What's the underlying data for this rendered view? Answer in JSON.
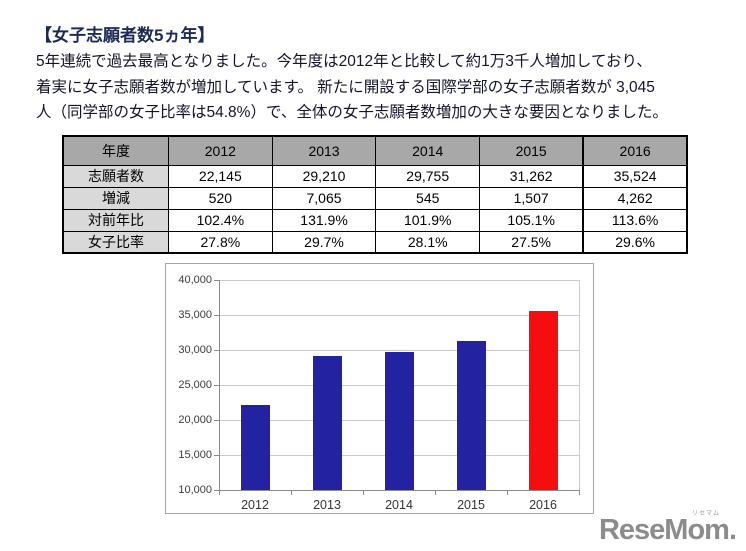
{
  "page": {
    "title": "【女子志願者数5ヵ年】",
    "paragraph_lines": [
      "5年連続で過去最高となりました。今年度は2012年と比較して約1万3千人増加しており、",
      "着実に女子志願者数が増加しています。 新たに開設する国際学部の女子志願者数が 3,045",
      "人（同学部の女子比率は54.8%）で、全体の女子志願者数増加の大きな要因となりました。"
    ]
  },
  "table": {
    "header": [
      "年度",
      "2012",
      "2013",
      "2014",
      "2015",
      "2016"
    ],
    "rows": [
      {
        "label": "志願者数",
        "values": [
          "22,145",
          "29,210",
          "29,755",
          "31,262",
          "35,524"
        ]
      },
      {
        "label": "増減",
        "values": [
          "520",
          "7,065",
          "545",
          "1,507",
          "4,262"
        ]
      },
      {
        "label": "対前年比",
        "values": [
          "102.4%",
          "131.9%",
          "101.9%",
          "105.1%",
          "113.6%"
        ]
      },
      {
        "label": "女子比率",
        "values": [
          "27.8%",
          "29.7%",
          "28.1%",
          "27.5%",
          "29.6%"
        ]
      }
    ]
  },
  "chart_data": {
    "type": "bar",
    "title": "",
    "xlabel": "",
    "ylabel": "",
    "categories": [
      "2012",
      "2013",
      "2014",
      "2015",
      "2016"
    ],
    "values": [
      22145,
      29210,
      29755,
      31262,
      35524
    ],
    "bar_colors": [
      "#2323a2",
      "#2323a2",
      "#2323a2",
      "#2323a2",
      "#f60d0d"
    ],
    "highlight_category": "2016",
    "ylim": [
      10000,
      40000
    ],
    "ytick_step": 5000,
    "ytick_labels": [
      "10,000",
      "15,000",
      "20,000",
      "25,000",
      "30,000",
      "35,000",
      "40,000"
    ],
    "grid": true,
    "legend_position": "none"
  },
  "logo": {
    "text": "ReseMom.",
    "ruby": "リセマム"
  },
  "colors": {
    "title_text": "#1c2b55",
    "body_text": "#14142a",
    "table_header_bg": "#a8a8a8",
    "table_label_bg": "#d9d9d9",
    "bar_blue": "#2323a2",
    "bar_red": "#f60d0d",
    "logo_gray": "#8c8c8c"
  }
}
